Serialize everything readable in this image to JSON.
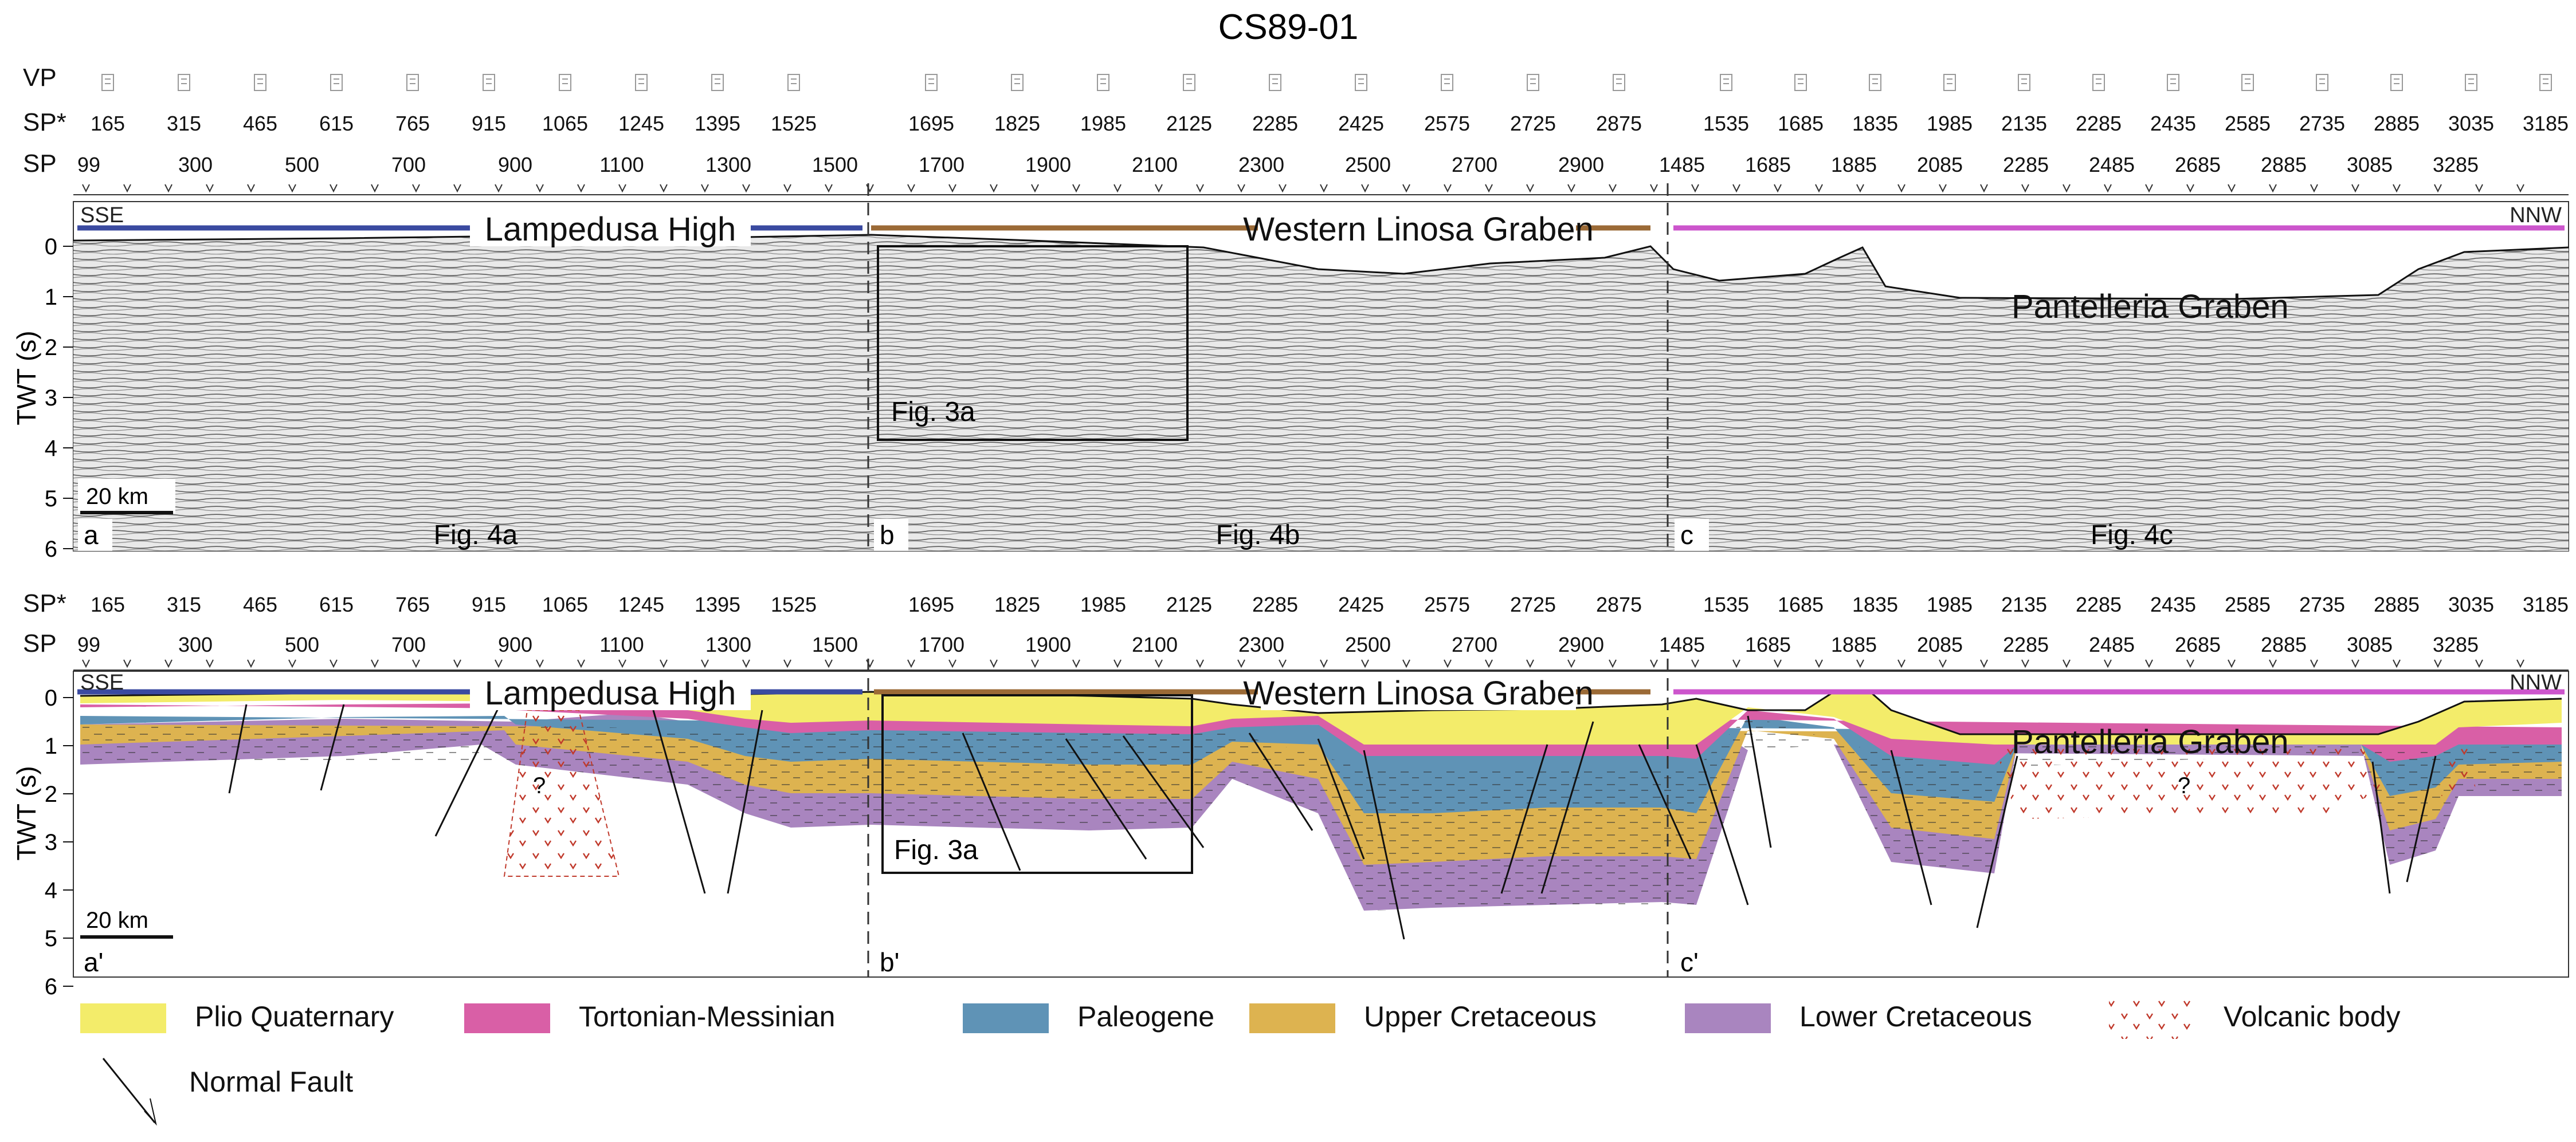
{
  "title": "CS89-01",
  "row_labels": {
    "vp": "VP",
    "sp_star": "SP*",
    "sp": "SP"
  },
  "sp_star_values": [
    "165",
    "315",
    "465",
    "615",
    "765",
    "915",
    "1065",
    "1245",
    "1395",
    "1525",
    "1695",
    "1825",
    "1985",
    "2125",
    "2285",
    "2425",
    "2575",
    "2725",
    "2875",
    "1535",
    "1685",
    "1835",
    "1985",
    "2135",
    "2285",
    "2435",
    "2585",
    "2735",
    "2885",
    "3035",
    "3185"
  ],
  "sp_values": [
    "99",
    "300",
    "500",
    "700",
    "900",
    "1100",
    "1300",
    "1500",
    "1700",
    "1900",
    "2100",
    "2300",
    "2500",
    "2700",
    "2900",
    "1485",
    "1685",
    "1885",
    "2085",
    "2285",
    "2485",
    "2685",
    "2885",
    "3085",
    "3285"
  ],
  "directions": {
    "left": "SSE",
    "right": "NNW"
  },
  "zones": {
    "lampedusa": "Lampedusa High",
    "linosa": "Western Linosa Graben",
    "pantelleria": "Pantelleria Graben"
  },
  "axis": {
    "label": "TWT (s)",
    "ticks": [
      "0",
      "1",
      "2",
      "3",
      "4",
      "5",
      "6"
    ]
  },
  "scale_bar": "20 km",
  "panels_top": {
    "a": "a",
    "b": "b",
    "c": "c",
    "fig_a": "Fig. 4a",
    "fig_b": "Fig. 4b",
    "fig_c": "Fig. 4c"
  },
  "panels_bottom": {
    "a": "a'",
    "b": "b'",
    "c": "c'"
  },
  "inset_label": "Fig. 3a",
  "unknown": "?",
  "legend": [
    {
      "label": "Plio Quaternary",
      "color": "#f3ec6a"
    },
    {
      "label": "Tortonian-Messinian",
      "color": "#d95fa6"
    },
    {
      "label": "Paleogene",
      "color": "#5f93b6"
    },
    {
      "label": "Upper Cretaceous",
      "color": "#ddb350"
    },
    {
      "label": "Lower Cretaceous",
      "color": "#a985bf"
    },
    {
      "label": "Volcanic body",
      "color": "#c0392b"
    }
  ],
  "fault_legend": "Normal Fault",
  "colors": {
    "lampedusa": "#3a4aa0",
    "linosa": "#9b6a36",
    "pantelleria": "#cc55cc"
  }
}
